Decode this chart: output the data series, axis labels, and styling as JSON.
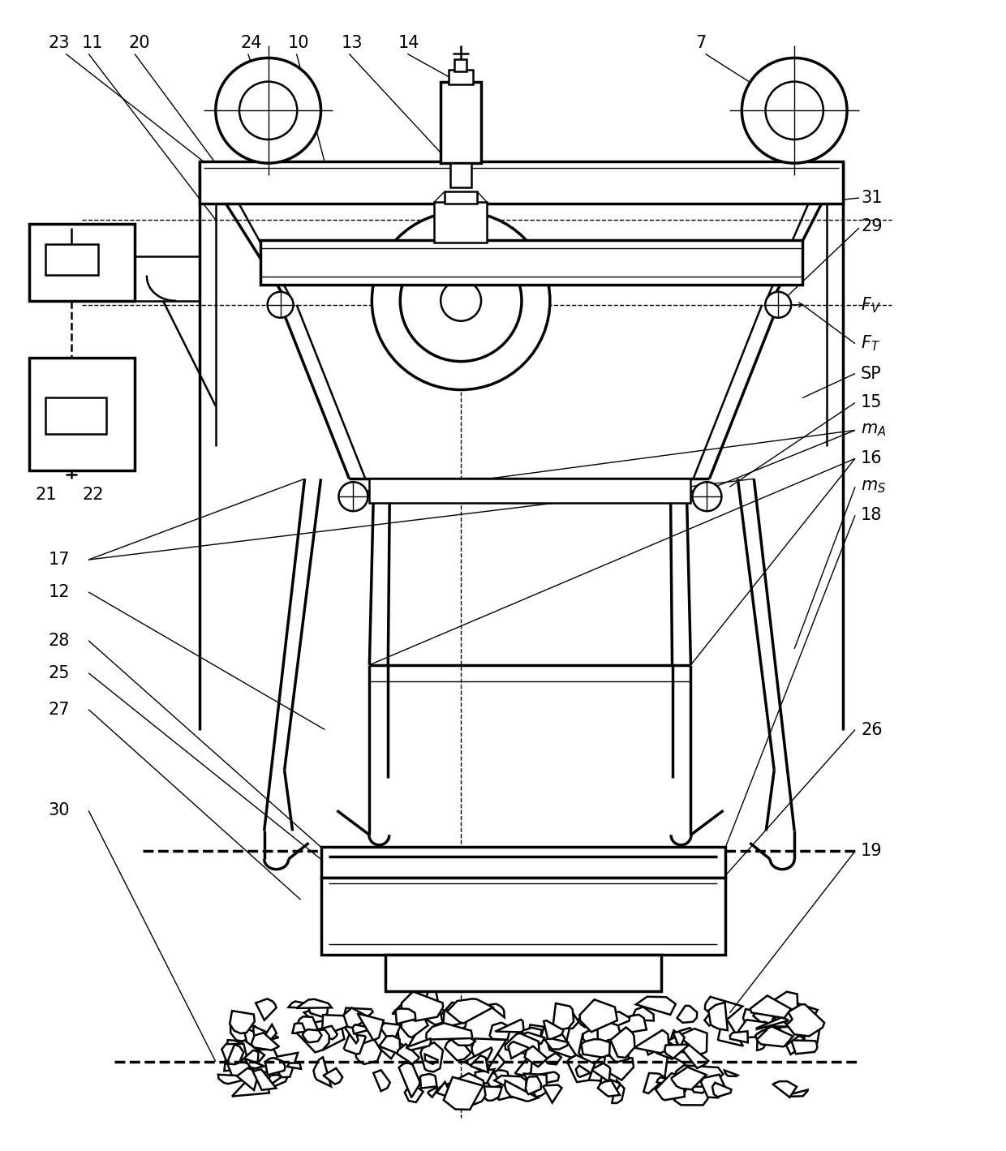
{
  "bg_color": "#ffffff",
  "line_color": "#000000",
  "fig_width": 12.4,
  "fig_height": 14.19,
  "dpi": 100
}
